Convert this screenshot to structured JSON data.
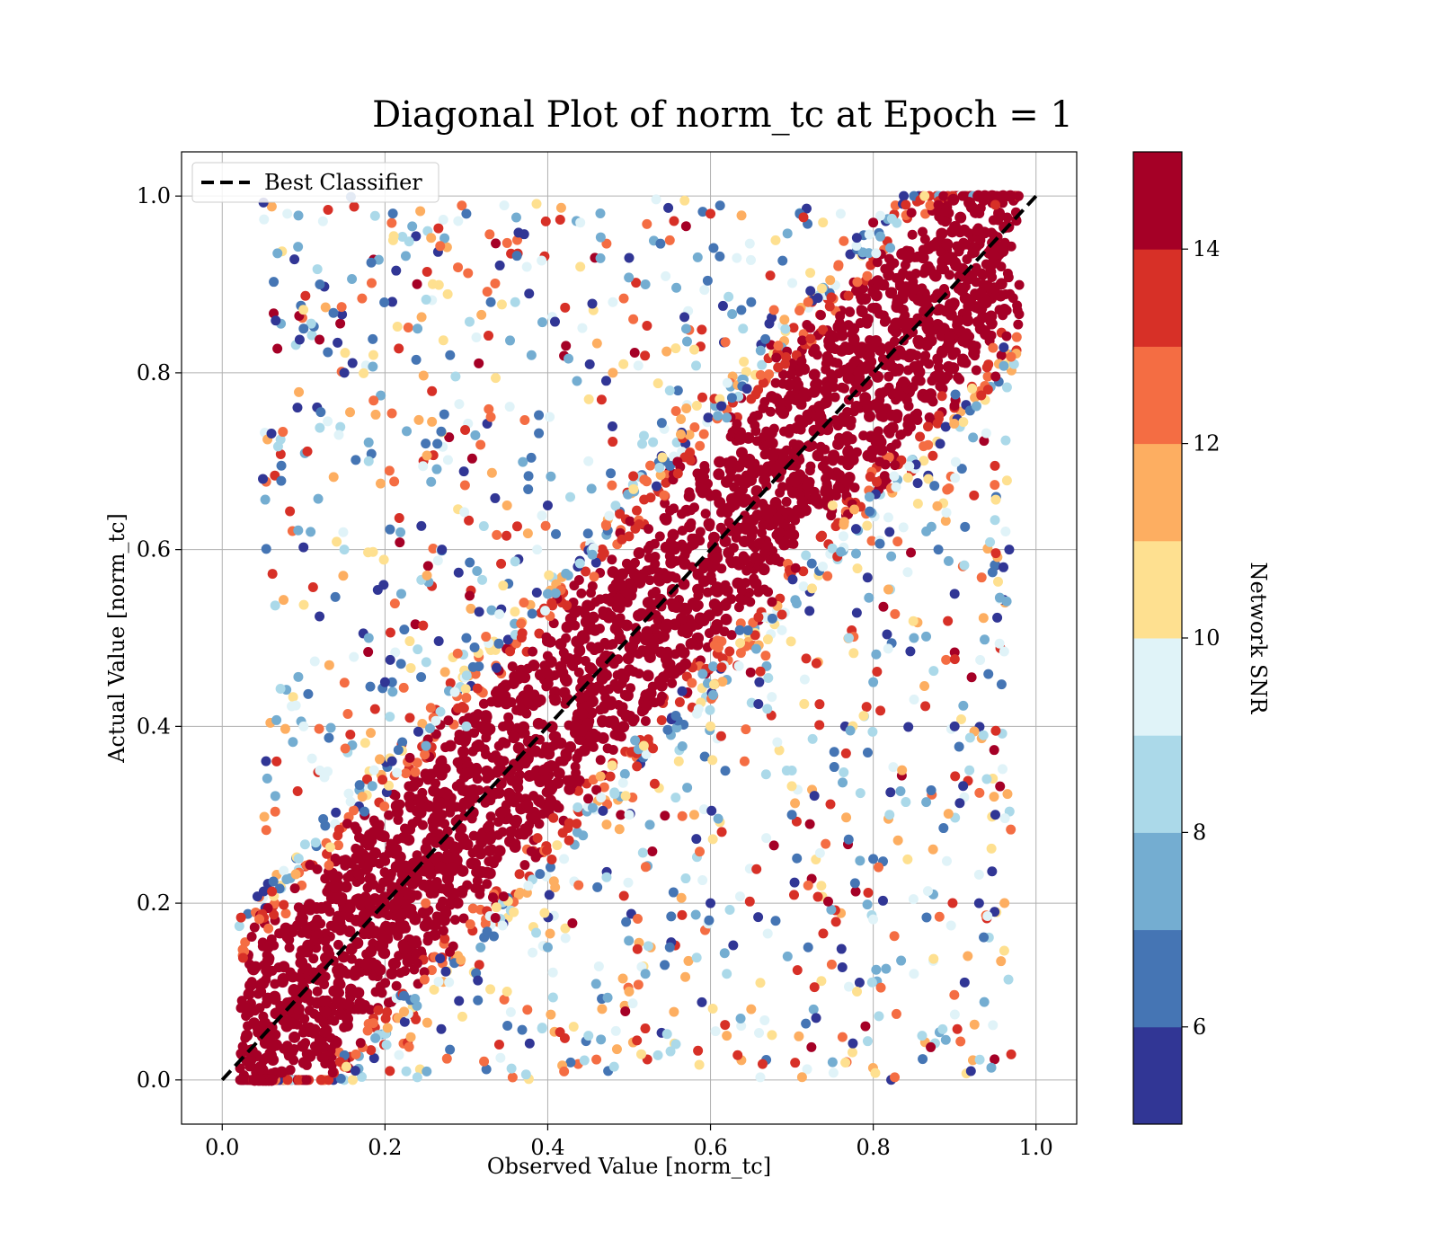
{
  "chart_data": {
    "type": "scatter",
    "title": "Diagonal Plot of norm_tc at Epoch = 1",
    "xlabel": "Observed Value [norm_tc]",
    "ylabel": "Actual Value [norm_tc]",
    "xlim": [
      -0.05,
      1.05
    ],
    "ylim": [
      -0.05,
      1.05
    ],
    "xticks": [
      0.0,
      0.2,
      0.4,
      0.6,
      0.8,
      1.0
    ],
    "yticks": [
      0.0,
      0.2,
      0.4,
      0.6,
      0.8,
      1.0
    ],
    "xtick_labels": [
      "0.0",
      "0.2",
      "0.4",
      "0.6",
      "0.8",
      "1.0"
    ],
    "ytick_labels": [
      "0.0",
      "0.2",
      "0.4",
      "0.6",
      "0.8",
      "1.0"
    ],
    "grid": true,
    "legend": {
      "placement": "top-left",
      "entries": [
        {
          "label": "Best Classifier",
          "style": "dashed",
          "color": "#000000"
        }
      ]
    },
    "reference_line": {
      "x": [
        0.0,
        1.0
      ],
      "y": [
        0.0,
        1.0
      ],
      "style": "dashed",
      "color": "#000000"
    },
    "colorbar": {
      "label": "Network SNR",
      "range": [
        5,
        15
      ],
      "ticks": [
        6,
        8,
        10,
        12,
        14
      ],
      "tick_labels": [
        "6",
        "8",
        "10",
        "12",
        "14"
      ],
      "levels": [
        {
          "from": 5,
          "to": 6,
          "color": "#313695"
        },
        {
          "from": 6,
          "to": 7,
          "color": "#4575b4"
        },
        {
          "from": 7,
          "to": 8,
          "color": "#74add1"
        },
        {
          "from": 8,
          "to": 9,
          "color": "#abd9e9"
        },
        {
          "from": 9,
          "to": 10,
          "color": "#e0f3f8"
        },
        {
          "from": 10,
          "to": 11,
          "color": "#fee090"
        },
        {
          "from": 11,
          "to": 12,
          "color": "#fdae61"
        },
        {
          "from": 12,
          "to": 13,
          "color": "#f46d43"
        },
        {
          "from": 13,
          "to": 14,
          "color": "#d73027"
        },
        {
          "from": 14,
          "to": 15,
          "color": "#a50026"
        }
      ]
    },
    "series": [
      {
        "points_x": [
          0.08,
          0.12,
          0.15,
          0.18,
          0.21,
          0.24,
          0.27,
          0.3,
          0.33,
          0.36,
          0.4,
          0.44,
          0.48,
          0.52,
          0.56,
          0.6,
          0.64,
          0.68,
          0.72,
          0.76,
          0.8,
          0.84,
          0.88,
          0.92,
          0.95,
          0.3,
          0.4,
          0.5,
          0.6,
          0.7,
          0.8,
          0.9,
          0.35,
          0.45,
          0.55,
          0.65,
          0.75,
          0.85,
          0.25,
          0.2,
          0.3,
          0.4,
          0.5,
          0.6,
          0.7,
          0.8,
          0.9,
          0.45,
          0.55,
          0.65,
          0.75,
          0.85,
          0.95,
          0.15,
          0.25,
          0.35,
          0.1,
          0.22,
          0.33,
          0.44,
          0.55,
          0.66,
          0.77,
          0.88,
          0.38,
          0.48,
          0.58,
          0.68,
          0.78,
          0.86,
          0.93,
          0.12,
          0.18,
          0.28,
          0.5,
          0.62,
          0.72,
          0.82,
          0.42,
          0.52,
          0.62,
          0.72,
          0.82,
          0.92,
          0.05,
          0.1,
          0.96
        ],
        "points_y": [
          0.98,
          0.9,
          0.8,
          0.7,
          0.95,
          0.85,
          0.6,
          0.98,
          0.75,
          0.88,
          0.65,
          0.97,
          0.8,
          0.9,
          0.78,
          0.98,
          0.85,
          0.95,
          0.88,
          0.98,
          0.97,
          0.99,
          0.99,
          0.99,
          0.99,
          0.5,
          0.55,
          0.3,
          0.2,
          0.35,
          0.25,
          0.4,
          0.1,
          0.05,
          0.15,
          0.08,
          0.02,
          0.12,
          0.2,
          0.45,
          0.4,
          0.15,
          0.1,
          0.4,
          0.3,
          0.45,
          0.55,
          0.7,
          0.78,
          0.88,
          0.65,
          0.5,
          0.3,
          0.6,
          0.72,
          0.65,
          0.4,
          0.55,
          0.88,
          0.92,
          0.95,
          0.45,
          0.5,
          0.6,
          0.82,
          0.88,
          0.3,
          0.18,
          0.1,
          0.05,
          0.2,
          0.35,
          0.5,
          0.82,
          0.93,
          0.12,
          0.22,
          0.62,
          0.25,
          0.12,
          0.05,
          0.15,
          0.3,
          0.01,
          0.68,
          0.85,
          0.58
        ],
        "points_snr": [
          9,
          6,
          5,
          8,
          10,
          7,
          5,
          6,
          12,
          8,
          5,
          9,
          11,
          7,
          6,
          13,
          8,
          10,
          12,
          9,
          14,
          13,
          14,
          14,
          13,
          6,
          7,
          9,
          5,
          8,
          6,
          5,
          10,
          8,
          6,
          11,
          7,
          9,
          12,
          5,
          8,
          7,
          11,
          10,
          6,
          7,
          5,
          9,
          8,
          6,
          10,
          7,
          5,
          8,
          6,
          11,
          9,
          7,
          6,
          10,
          12,
          5,
          8,
          6,
          7,
          9,
          11,
          6,
          10,
          8,
          5,
          9,
          7,
          6,
          5,
          8,
          12,
          5,
          9,
          7,
          11,
          6,
          8,
          5,
          5,
          6,
          5
        ],
        "band_samples": 2400,
        "note_color_key": "points colored by Network SNR"
      }
    ]
  },
  "colors": {
    "axis": "#000000",
    "grid": "#b0b0b0",
    "background": "#ffffff"
  }
}
